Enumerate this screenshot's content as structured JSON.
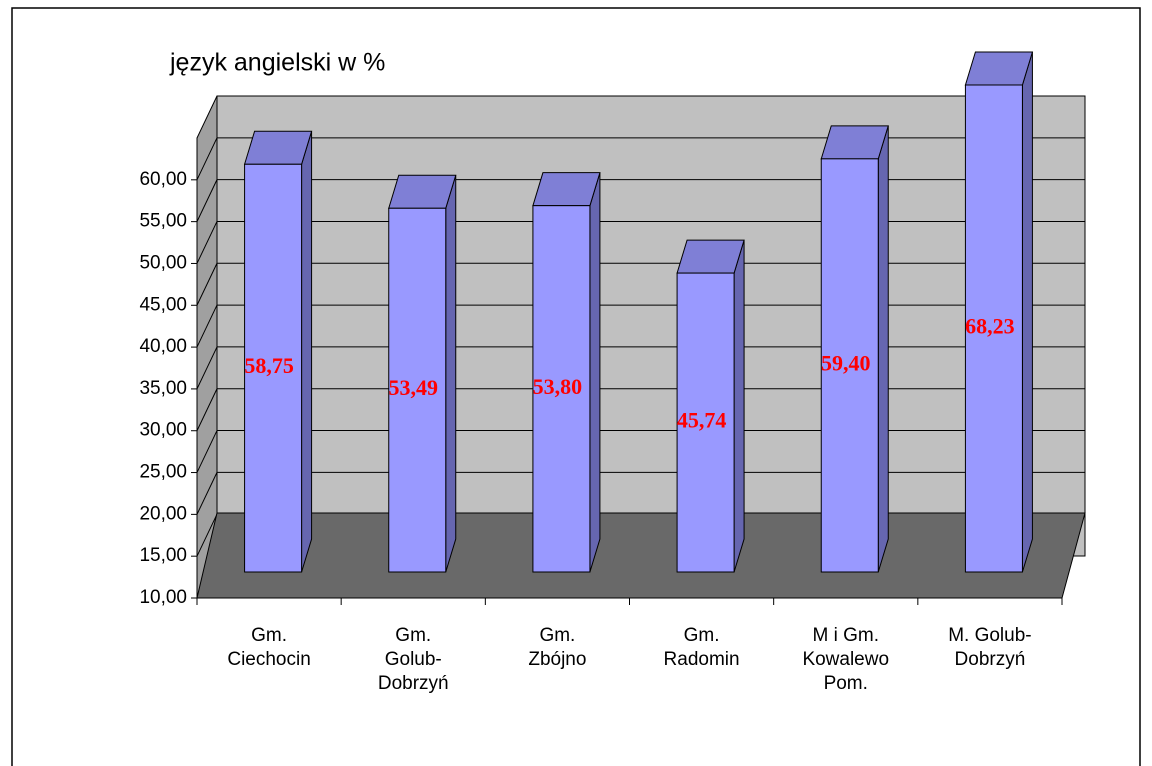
{
  "chart_data": {
    "type": "bar3d",
    "title": "język angielski w %",
    "categories": [
      "Gm.\nCiechocin",
      "Gm.\nGolub-\nDobrzyń",
      "Gm.\nZbójno",
      "Gm.\nRadomin",
      "M i Gm.\nKowalewo\nPom.",
      "M. Golub-\nDobrzyń"
    ],
    "values": [
      58.75,
      53.49,
      53.8,
      45.74,
      59.4,
      68.23
    ],
    "value_labels": [
      "58,75",
      "53,49",
      "53,80",
      "45,74",
      "59,40",
      "68,23"
    ],
    "color": "#9999ff",
    "ylim": [
      10,
      65
    ],
    "yticks": [
      {
        "value": 10,
        "label": "10,00"
      },
      {
        "value": 15,
        "label": "15,00"
      },
      {
        "value": 20,
        "label": "20,00"
      },
      {
        "value": 25,
        "label": "25,00"
      },
      {
        "value": 30,
        "label": "30,00"
      },
      {
        "value": 35,
        "label": "35,00"
      },
      {
        "value": 40,
        "label": "40,00"
      },
      {
        "value": 45,
        "label": "45,00"
      },
      {
        "value": 50,
        "label": "50,00"
      },
      {
        "value": 55,
        "label": "55,00"
      },
      {
        "value": 60,
        "label": "60,00"
      }
    ],
    "grid": true
  }
}
